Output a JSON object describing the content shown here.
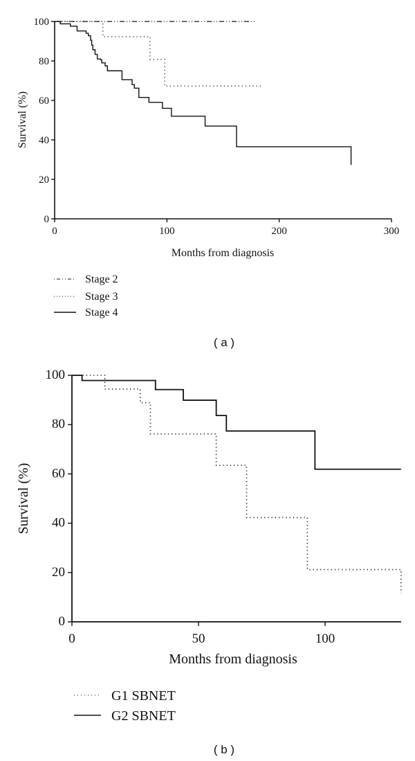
{
  "chart_data": [
    {
      "type": "line",
      "subtype": "kaplan-meier step",
      "panel_label": "( a )",
      "xlabel": "Months from diagnosis",
      "ylabel": "Survival (%)",
      "xlim": [
        0,
        300
      ],
      "ylim": [
        0,
        100
      ],
      "xticks": [
        "0",
        "100",
        "200",
        "300"
      ],
      "yticks": [
        "0",
        "20",
        "40",
        "60",
        "80",
        "100"
      ],
      "grid": false,
      "legend_position": "below-left",
      "series": [
        {
          "name": "Stage 2",
          "style": "dash-dot",
          "x": [
            0,
            178
          ],
          "y": [
            100,
            100
          ]
        },
        {
          "name": "Stage 3",
          "style": "dotted",
          "x": [
            0,
            41,
            43,
            84,
            85,
            97,
            98,
            186
          ],
          "y": [
            100,
            100,
            92.3,
            92.3,
            80.8,
            80.8,
            67.3,
            67.3
          ]
        },
        {
          "name": "Stage 4",
          "style": "solid",
          "x": [
            0,
            5,
            14,
            20,
            28,
            30,
            32,
            33,
            34,
            36,
            38,
            41,
            42,
            45,
            47,
            58,
            60,
            67,
            69,
            71,
            75,
            84,
            96,
            104,
            134,
            162,
            264
          ],
          "y": [
            100,
            98.8,
            97.6,
            95.2,
            94,
            92.8,
            90.5,
            88,
            85.7,
            83.3,
            81,
            80.5,
            79,
            77.5,
            75,
            75,
            70.5,
            70.5,
            68,
            66.2,
            61.5,
            59,
            56,
            52,
            47,
            36.5,
            27.3
          ]
        }
      ]
    },
    {
      "type": "line",
      "subtype": "kaplan-meier step",
      "panel_label": "( b )",
      "xlabel": "Months from diagnosis",
      "ylabel": "Survival (%)",
      "xlim": [
        0,
        130
      ],
      "ylim": [
        0,
        100
      ],
      "xticks": [
        "0",
        "50",
        "100"
      ],
      "yticks": [
        "0",
        "20",
        "40",
        "60",
        "80",
        "100"
      ],
      "grid": false,
      "legend_position": "below-left",
      "series": [
        {
          "name": "G1 SBNET",
          "style": "dotted",
          "x": [
            0,
            13,
            27,
            31,
            57,
            69,
            93,
            130,
            130
          ],
          "y": [
            100,
            94.4,
            88.9,
            76.2,
            63.5,
            42.3,
            21.2,
            21.2,
            11.5
          ]
        },
        {
          "name": "G2 SBNET",
          "style": "solid",
          "x": [
            0,
            4,
            33,
            44,
            57,
            61,
            96,
            130
          ],
          "y": [
            100,
            97.9,
            94.2,
            89.9,
            83.7,
            77.4,
            61.9,
            61.9
          ]
        }
      ]
    }
  ],
  "figure": {
    "panel_a": {
      "caption": "( a )",
      "xlabel": "Months from diagnosis",
      "ylabel": "Survival (%)",
      "xticks": [
        "0",
        "100",
        "200",
        "300"
      ],
      "yticks": [
        "0",
        "20",
        "40",
        "60",
        "80",
        "100"
      ],
      "legend": [
        "Stage 2",
        "Stage 3",
        "Stage 4"
      ]
    },
    "panel_b": {
      "caption": "( b )",
      "xlabel": "Months from diagnosis",
      "ylabel": "Survival (%)",
      "xticks": [
        "0",
        "50",
        "100"
      ],
      "yticks": [
        "0",
        "20",
        "40",
        "60",
        "80",
        "100"
      ],
      "legend": [
        "G1 SBNET",
        "G2 SBNET"
      ]
    }
  }
}
